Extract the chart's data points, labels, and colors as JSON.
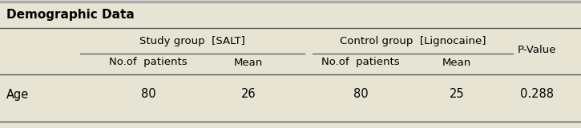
{
  "title": "Demographic Data",
  "bg_color": "#e8e4d4",
  "top_border_color": "#aaaaaa",
  "line_color": "#555555",
  "group1_header": "Study group  [SALT]",
  "group2_header": "Control group  [Lignocaine]",
  "pvalue_header": "P-Value",
  "sub_headers": [
    "No.of  patients",
    "Mean",
    "No.of  patients",
    "Mean"
  ],
  "row_label": "Age",
  "row_vals": [
    "80",
    "26",
    "80",
    "25",
    "0.288"
  ],
  "font_size": 9.5,
  "title_font_size": 11
}
